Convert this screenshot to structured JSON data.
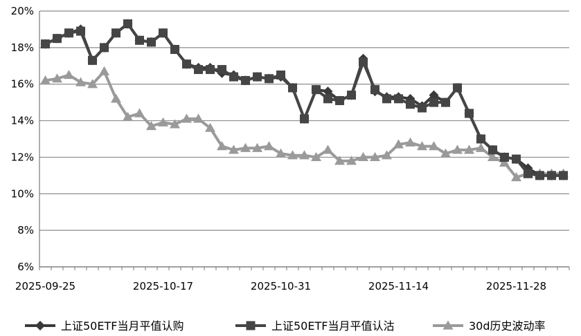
{
  "chart_data": {
    "type": "line",
    "title": "",
    "xlabel": "",
    "ylabel": "",
    "ylim": [
      6,
      20
    ],
    "yticks": [
      "6%",
      "8%",
      "10%",
      "12%",
      "14%",
      "16%",
      "18%",
      "20%"
    ],
    "x": [
      "2025-09-25",
      "2025-09-26",
      "2025-09-29",
      "2025-09-30",
      "2025-10-09",
      "2025-10-10",
      "2025-10-13",
      "2025-10-14",
      "2025-10-15",
      "2025-10-16",
      "2025-10-17",
      "2025-10-20",
      "2025-10-21",
      "2025-10-22",
      "2025-10-23",
      "2025-10-24",
      "2025-10-27",
      "2025-10-28",
      "2025-10-29",
      "2025-10-30",
      "2025-10-31",
      "2025-11-03",
      "2025-11-04",
      "2025-11-05",
      "2025-11-06",
      "2025-11-07",
      "2025-11-10",
      "2025-11-11",
      "2025-11-12",
      "2025-11-13",
      "2025-11-14",
      "2025-11-17",
      "2025-11-18",
      "2025-11-19",
      "2025-11-20",
      "2025-11-21",
      "2025-11-24",
      "2025-11-25",
      "2025-11-26",
      "2025-11-27",
      "2025-11-28",
      "2025-12-01",
      "2025-12-02",
      "2025-12-03",
      "2025-12-04"
    ],
    "xtick_labels": [
      "2025-09-25",
      "2025-10-17",
      "2025-10-31",
      "2025-11-14",
      "2025-11-28"
    ],
    "series": [
      {
        "name": "上证50ETF当月平值认购",
        "color": "#3a3a3a",
        "marker": "diamond",
        "values": [
          18.2,
          18.5,
          18.8,
          19.0,
          17.3,
          18.0,
          18.8,
          19.3,
          18.4,
          18.3,
          18.8,
          17.9,
          17.1,
          16.9,
          16.9,
          16.6,
          16.5,
          16.2,
          16.4,
          16.3,
          16.4,
          15.8,
          14.1,
          15.7,
          15.6,
          15.1,
          15.4,
          17.4,
          15.6,
          15.3,
          15.3,
          15.2,
          14.8,
          15.4,
          15.0,
          15.8,
          14.4,
          13.0,
          12.4,
          12.0,
          11.9,
          11.4,
          11.0,
          11.0,
          11.0
        ]
      },
      {
        "name": "上证50ETF当月平值认沽",
        "color": "#454545",
        "marker": "square",
        "values": [
          18.2,
          18.5,
          18.8,
          18.9,
          17.3,
          18.0,
          18.8,
          19.3,
          18.4,
          18.3,
          18.8,
          17.9,
          17.1,
          16.8,
          16.8,
          16.8,
          16.4,
          16.2,
          16.4,
          16.3,
          16.5,
          15.8,
          14.1,
          15.7,
          15.2,
          15.1,
          15.4,
          17.2,
          15.7,
          15.2,
          15.2,
          14.9,
          14.7,
          15.0,
          15.0,
          15.8,
          14.4,
          13.0,
          12.4,
          12.0,
          11.9,
          11.1,
          11.0,
          11.0,
          11.0
        ]
      },
      {
        "name": "30d历史波动率",
        "color": "#9a9a9a",
        "marker": "triangle",
        "values": [
          16.2,
          16.3,
          16.5,
          16.1,
          16.0,
          16.7,
          15.2,
          14.2,
          14.4,
          13.7,
          13.9,
          13.8,
          14.1,
          14.1,
          13.6,
          12.6,
          12.4,
          12.5,
          12.5,
          12.6,
          12.2,
          12.1,
          12.1,
          12.0,
          12.4,
          11.8,
          11.8,
          12.0,
          12.0,
          12.1,
          12.7,
          12.8,
          12.6,
          12.6,
          12.2,
          12.4,
          12.4,
          12.5,
          12.0,
          11.7,
          10.9,
          11.1,
          11.1,
          11.1,
          11.1
        ]
      }
    ],
    "grid": true,
    "legend_position": "bottom"
  }
}
